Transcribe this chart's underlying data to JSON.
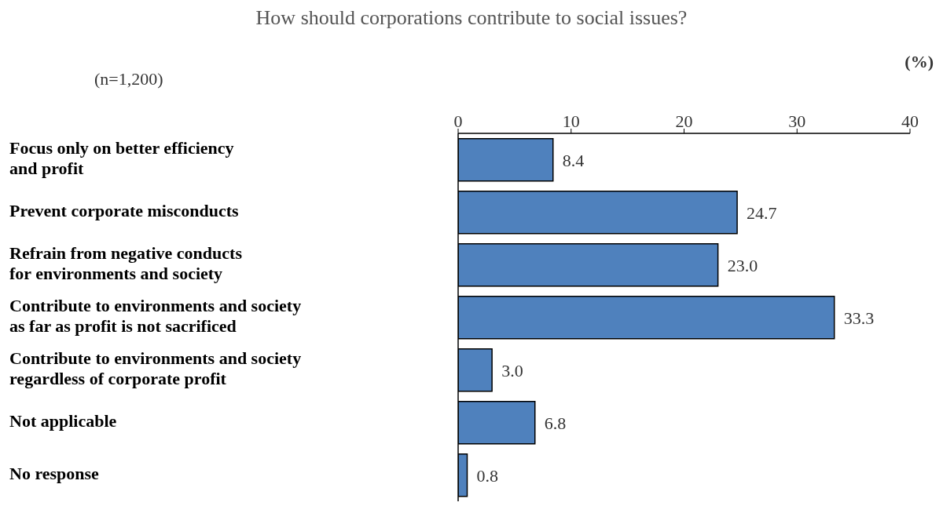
{
  "chart_data": {
    "type": "bar",
    "orientation": "horizontal",
    "title": "How should corporations contribute to social issues?",
    "xlabel": "(%)",
    "annotations": [
      "(n=1,200)"
    ],
    "categories": [
      "Focus only on better efficiency\nand profit",
      "Prevent corporate misconducts",
      "Refrain from negative conducts\nfor environments and society",
      "Contribute to environments and society\nas far as profit is not sacrificed",
      "Contribute to environments and society\nregardless of corporate profit",
      "Not applicable",
      "No response"
    ],
    "values": [
      8.4,
      24.7,
      23.0,
      33.3,
      3.0,
      6.8,
      0.8
    ],
    "value_labels": [
      "8.4",
      "24.7",
      "23.0",
      "33.3",
      "3.0",
      "6.8",
      "0.8"
    ],
    "color": "#4f81bd",
    "x2lim": [
      0,
      40
    ],
    "x2ticks": [
      0,
      10,
      20,
      30,
      40
    ],
    "grid": false,
    "legend": false
  }
}
